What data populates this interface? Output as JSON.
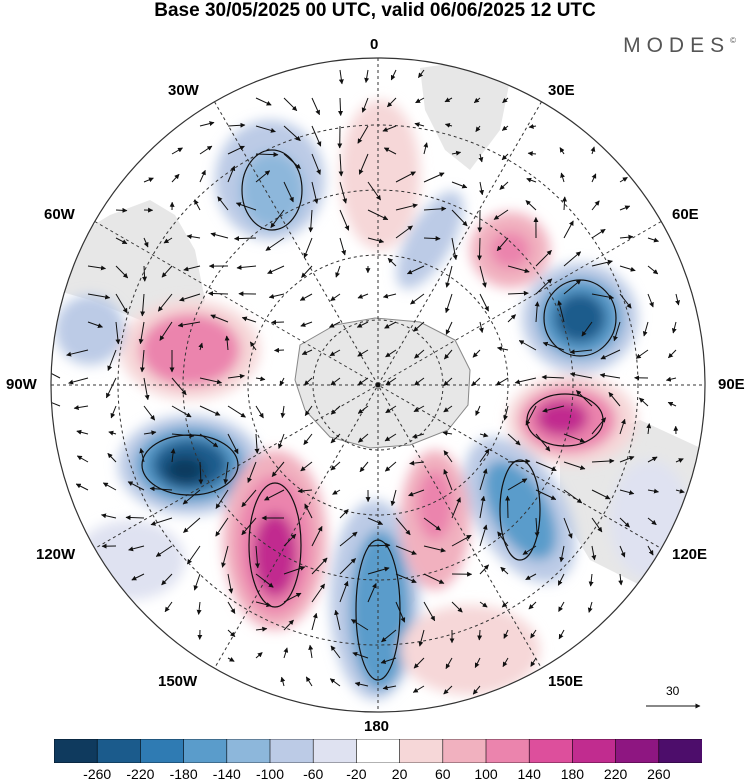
{
  "title": "Base 30/05/2025 00 UTC, valid 06/06/2025 12 UTC",
  "brand": {
    "name": "MODES",
    "mark": "©"
  },
  "longitude_labels": {
    "lon_0": "0",
    "lon_30E": "30E",
    "lon_60E": "60E",
    "lon_90E": "90E",
    "lon_120E": "120E",
    "lon_150E": "150E",
    "lon_180": "180",
    "lon_150W": "150W",
    "lon_120W": "120W",
    "lon_90W": "90W",
    "lon_60W": "60W",
    "lon_30W": "30W"
  },
  "reference_vector": {
    "value": "30"
  },
  "colorbar": {
    "ticks": [
      "-260",
      "-220",
      "-180",
      "-140",
      "-100",
      "-60",
      "-20",
      "20",
      "60",
      "100",
      "140",
      "180",
      "220",
      "260"
    ],
    "colors": [
      "#0f3a5e",
      "#1b5b8c",
      "#2f7bb3",
      "#5a9ccb",
      "#8db7db",
      "#bccbe6",
      "#dfe2f1",
      "#ffffff",
      "#f6d7d8",
      "#f1b1bf",
      "#eb84ad",
      "#dd4f9c",
      "#c12c8f",
      "#8e1681",
      "#4d0d6b"
    ]
  },
  "colors": {
    "land": "#e7e7e7",
    "coast": "#888888",
    "grid": "#333333",
    "arrow": "#111111"
  }
}
